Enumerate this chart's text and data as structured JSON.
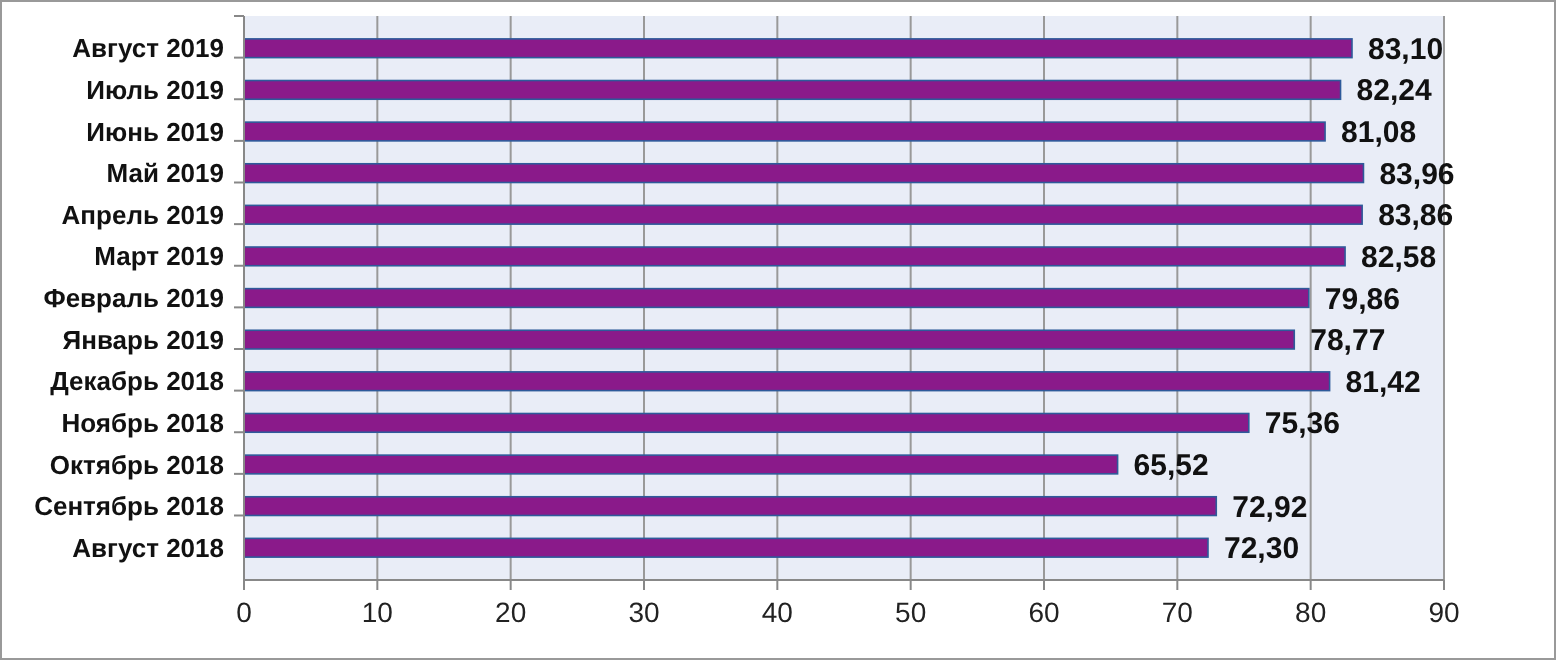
{
  "chart_data": {
    "type": "bar",
    "orientation": "horizontal",
    "categories": [
      "Август 2019",
      "Июль 2019",
      "Июнь 2019",
      "Май 2019",
      "Апрель 2019",
      "Март 2019",
      "Февраль 2019",
      "Январь 2019",
      "Декабрь 2018",
      "Ноябрь 2018",
      "Октябрь 2018",
      "Сентябрь 2018",
      "Август 2018"
    ],
    "values": [
      83.1,
      82.24,
      81.08,
      83.96,
      83.86,
      82.58,
      79.86,
      78.77,
      81.42,
      75.36,
      65.52,
      72.92,
      72.3
    ],
    "value_labels": [
      "83,10",
      "82,24",
      "81,08",
      "83,96",
      "83,86",
      "82,58",
      "79,86",
      "78,77",
      "81,42",
      "75,36",
      "65,52",
      "72,92",
      "72,30"
    ],
    "color": "#8a1a8a",
    "xlim": [
      0,
      90
    ],
    "xticks": [
      0,
      10,
      20,
      30,
      40,
      50,
      60,
      70,
      80,
      90
    ],
    "grid": "x"
  }
}
